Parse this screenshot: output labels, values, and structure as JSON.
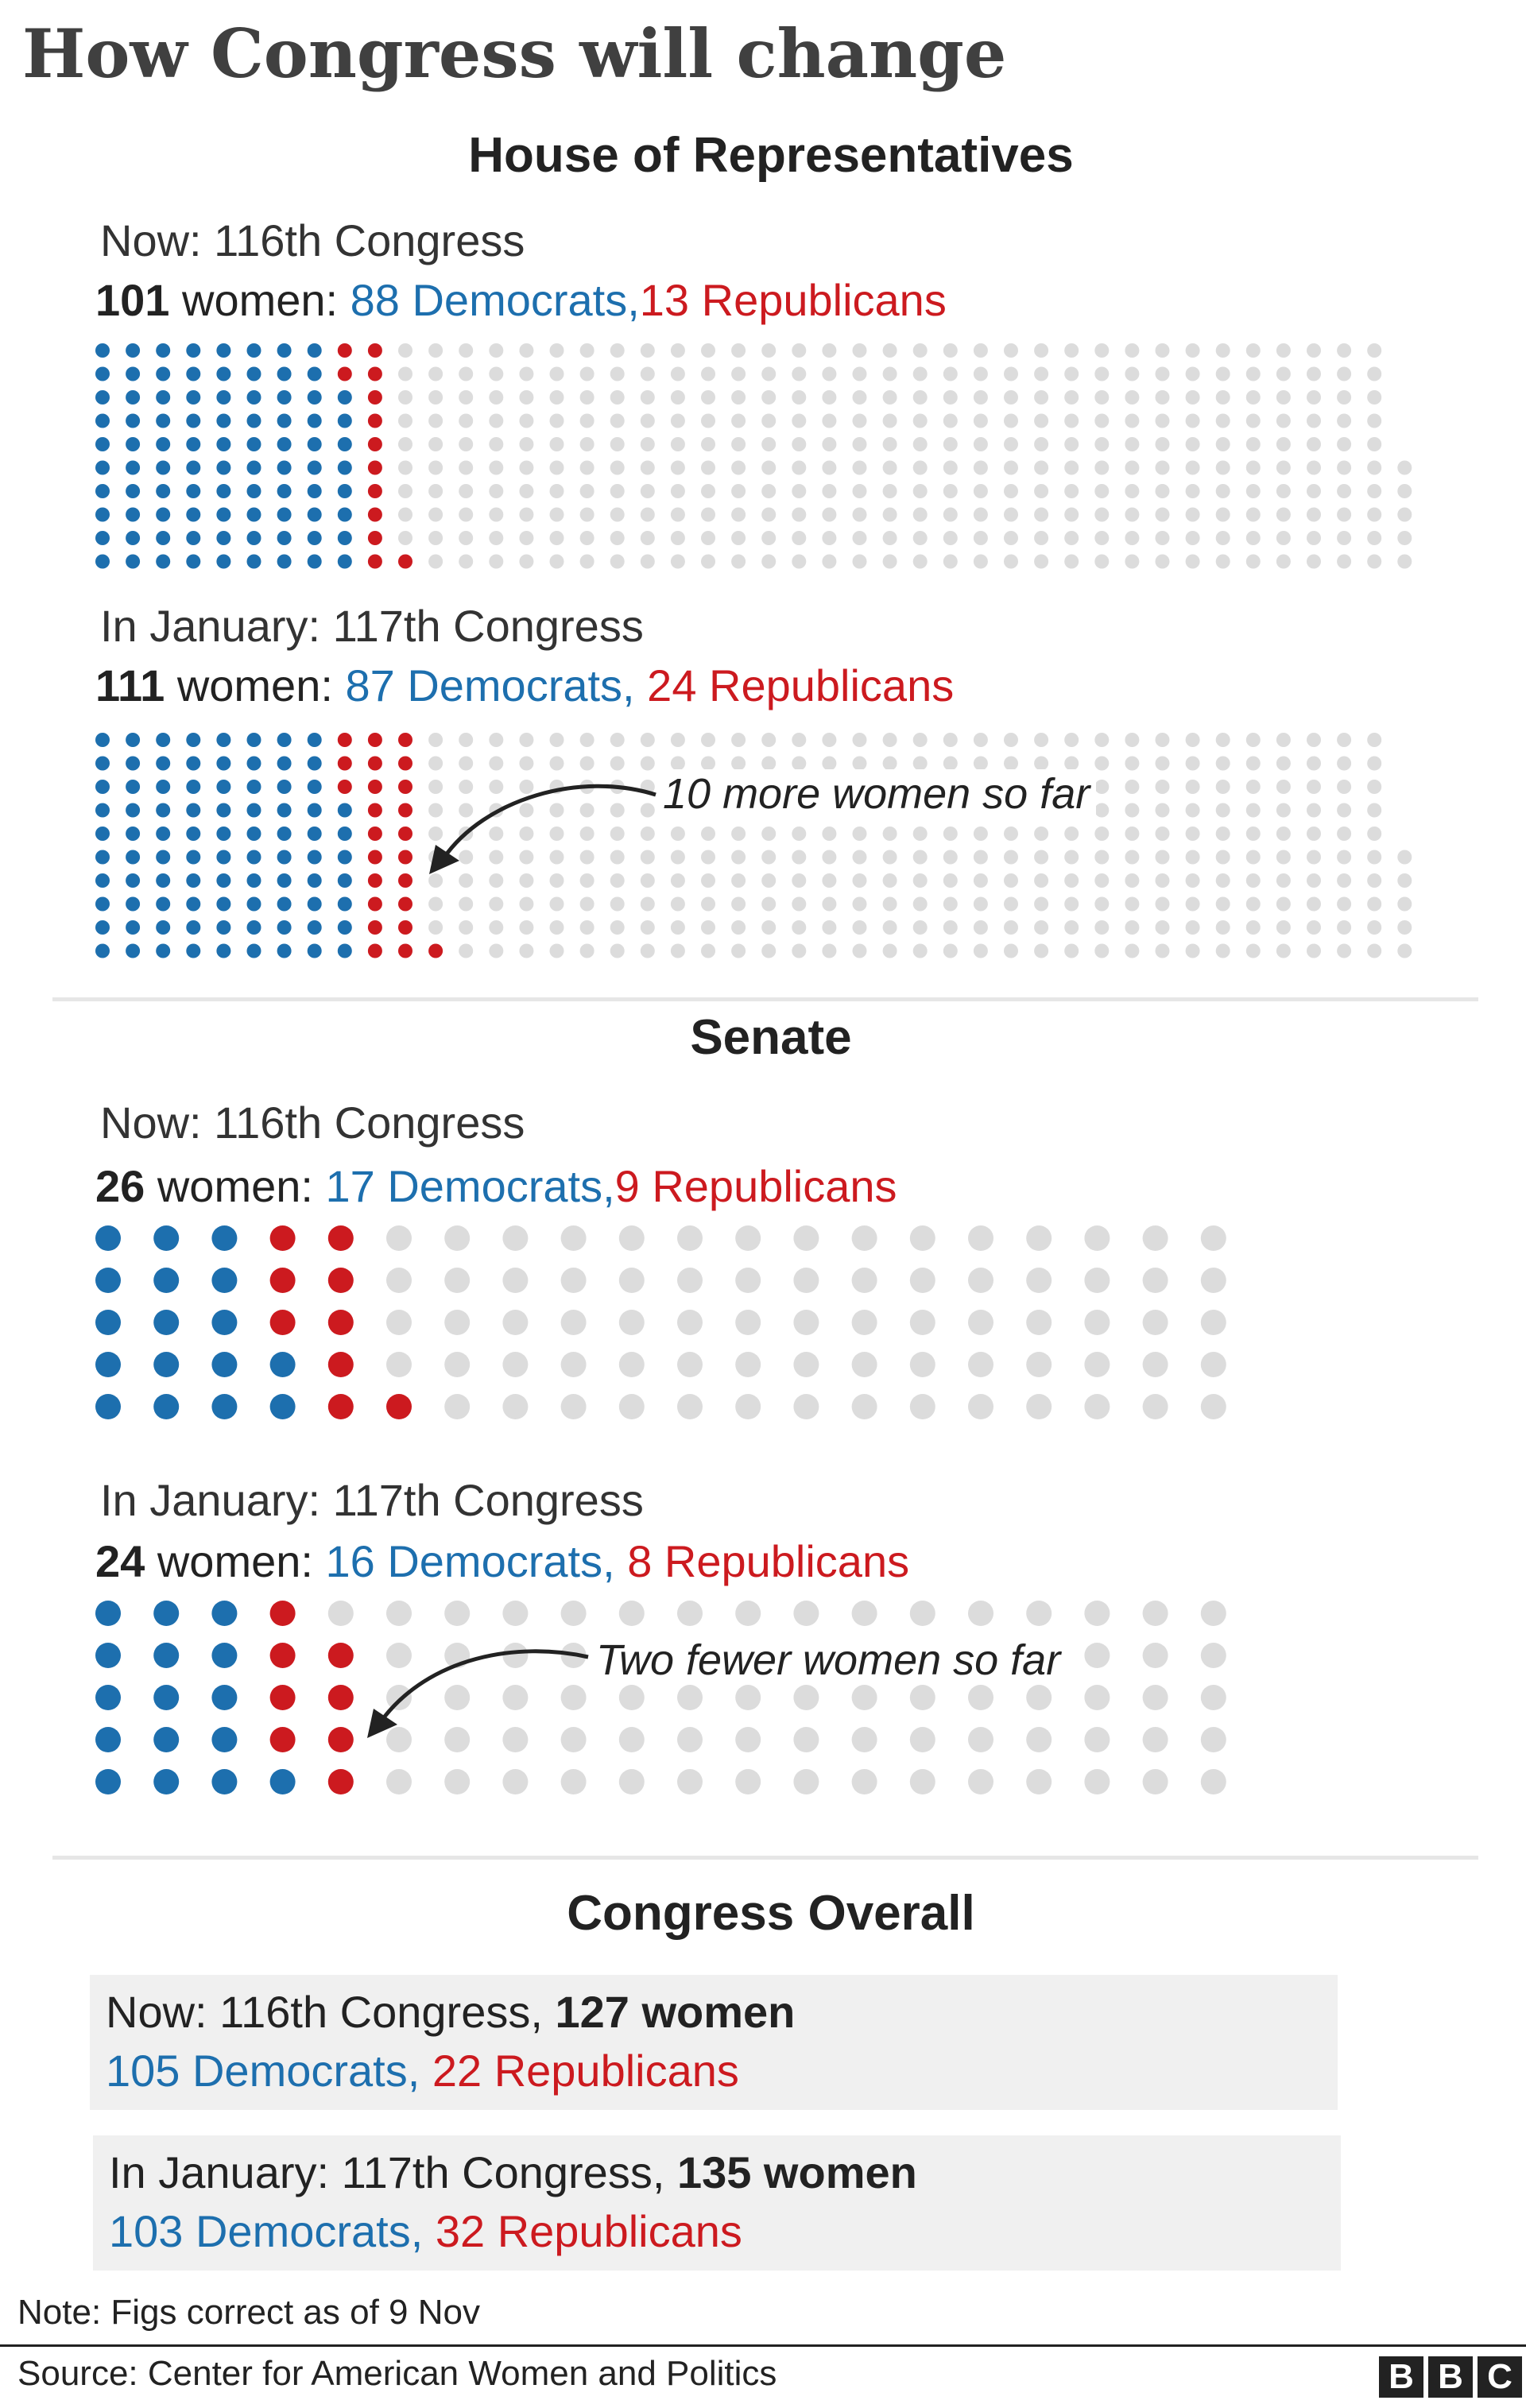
{
  "title": "How Congress will change",
  "colors": {
    "democrat": "#1d6fae",
    "republican": "#cc1a1f",
    "empty": "#dcdcdc"
  },
  "house": {
    "heading": "House of Representatives",
    "now": {
      "label": "Now: 116th Congress",
      "total": "101",
      "women_word": " women:",
      "dem_text": "88 Democrats,",
      "rep_text": "13 Republicans"
    },
    "january": {
      "label": "In January: 117th Congress",
      "total": "111",
      "women_word": " women:",
      "dem_text": "87 Democrats,",
      "rep_text": "24 Republicans",
      "annotation": "10 more women so far"
    }
  },
  "senate": {
    "heading": "Senate",
    "now": {
      "label": "Now: 116th Congress",
      "total": "26",
      "women_word": " women:",
      "dem_text": "17 Democrats,",
      "rep_text": "9 Republicans"
    },
    "january": {
      "label": "In January: 117th Congress",
      "total": "24",
      "women_word": " women:",
      "dem_text": "16 Democrats,",
      "rep_text": "8 Republicans",
      "annotation": "Two fewer women so far"
    }
  },
  "overall": {
    "heading": "Congress Overall",
    "now": {
      "label": "Now: 116th Congress,",
      "total_text": "127 women",
      "dem_text": "105 Democrats,",
      "rep_text": "22 Republicans"
    },
    "january": {
      "label": "In January: 117th Congress,",
      "total_text": "135 women",
      "dem_text": "103 Democrats,",
      "rep_text": "32 Republicans"
    }
  },
  "note": "Note: Figs correct as of 9 Nov",
  "source": "Source: Center for American Women and Politics",
  "logo": [
    "B",
    "B",
    "C"
  ],
  "chart_data": [
    {
      "type": "waffle",
      "chamber": "House of Representatives",
      "period": "Now: 116th Congress",
      "seats": 435,
      "rows": 10,
      "categories": [
        "Democrats",
        "Republicans"
      ],
      "values": [
        88,
        13
      ]
    },
    {
      "type": "waffle",
      "chamber": "House of Representatives",
      "period": "In January: 117th Congress",
      "seats": 435,
      "rows": 10,
      "categories": [
        "Democrats",
        "Republicans"
      ],
      "values": [
        87,
        24
      ]
    },
    {
      "type": "waffle",
      "chamber": "Senate",
      "period": "Now: 116th Congress",
      "seats": 100,
      "rows": 5,
      "categories": [
        "Democrats",
        "Republicans"
      ],
      "values": [
        17,
        9
      ]
    },
    {
      "type": "waffle",
      "chamber": "Senate",
      "period": "In January: 117th Congress",
      "seats": 100,
      "rows": 5,
      "categories": [
        "Democrats",
        "Republicans"
      ],
      "values": [
        16,
        8
      ]
    }
  ]
}
